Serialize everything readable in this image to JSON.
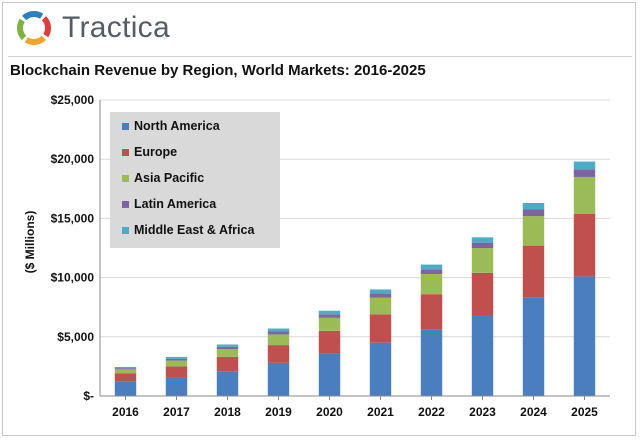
{
  "brand": {
    "name": "Tractica",
    "logo_colors": [
      "#e23b3b",
      "#f2a32b",
      "#7cb342",
      "#2e7fc2"
    ]
  },
  "chart_data": {
    "type": "bar",
    "stacked": true,
    "title": "Blockchain Revenue by Region, World Markets: 2016-2025",
    "ylabel": "($ Millions)",
    "xlabel": "",
    "ylim": [
      0,
      25000
    ],
    "yticks": [
      0,
      5000,
      10000,
      15000,
      20000,
      25000
    ],
    "ytick_labels": [
      "$-",
      "$5,000",
      "$10,000",
      "$15,000",
      "$20,000",
      "$25,000"
    ],
    "grid": true,
    "legend_position": "top-left",
    "categories": [
      "2016",
      "2017",
      "2018",
      "2019",
      "2020",
      "2021",
      "2022",
      "2023",
      "2024",
      "2025"
    ],
    "series": [
      {
        "name": "North America",
        "color": "#4a7ebf",
        "values": [
          1200,
          1600,
          2100,
          2800,
          3600,
          4500,
          5600,
          6800,
          8300,
          10100
        ]
      },
      {
        "name": "Europe",
        "color": "#c0504d",
        "values": [
          700,
          900,
          1200,
          1500,
          1900,
          2400,
          3000,
          3600,
          4400,
          5300
        ]
      },
      {
        "name": "Asia Pacific",
        "color": "#9bbb59",
        "values": [
          350,
          500,
          650,
          900,
          1100,
          1400,
          1700,
          2100,
          2500,
          3100
        ]
      },
      {
        "name": "Latin America",
        "color": "#8064a2",
        "values": [
          100,
          150,
          200,
          250,
          300,
          350,
          400,
          450,
          550,
          650
        ]
      },
      {
        "name": "Middle East & Africa",
        "color": "#4bacc6",
        "values": [
          100,
          150,
          200,
          250,
          300,
          350,
          400,
          450,
          550,
          650
        ]
      }
    ]
  }
}
